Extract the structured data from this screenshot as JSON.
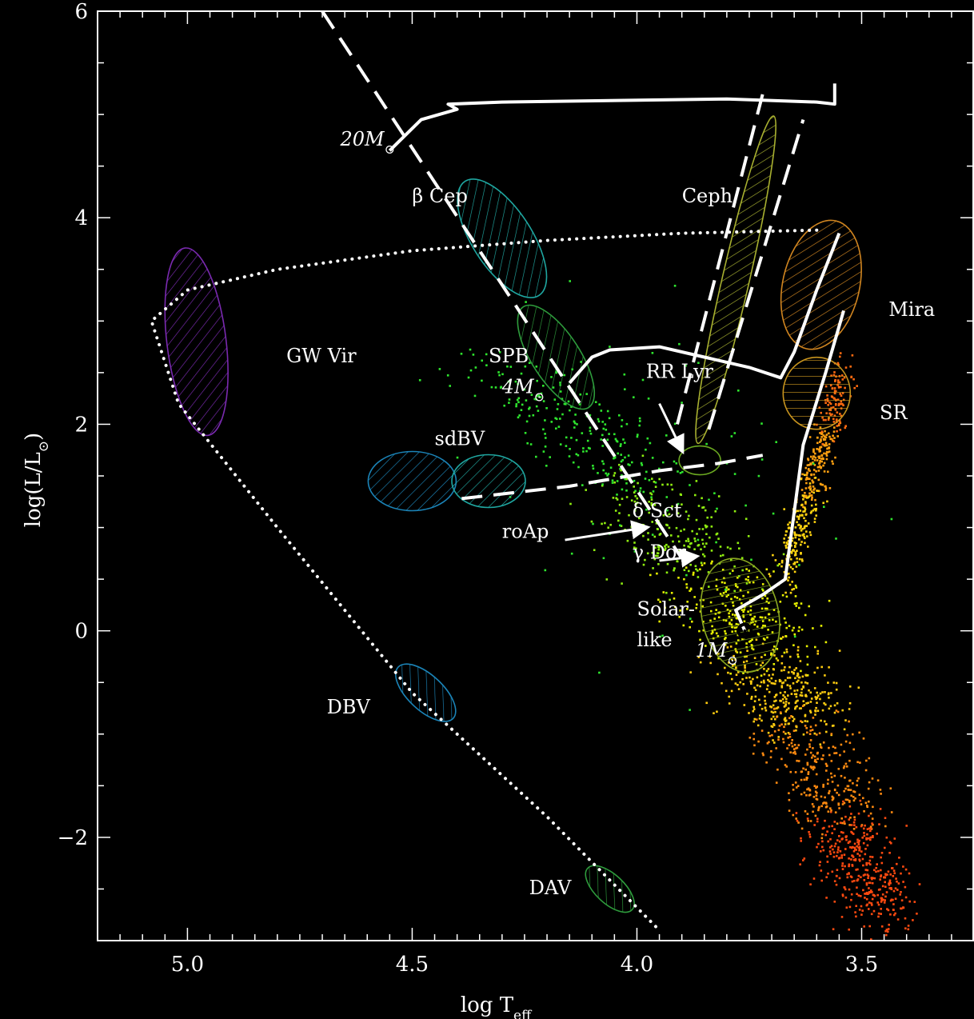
{
  "chart_data": {
    "type": "scatter",
    "title": "",
    "xlabel": "log T",
    "xlabel_sub": "eff",
    "ylabel": "log(L/L",
    "ylabel_sun": "⊙",
    "ylabel_close": ")",
    "xlim": [
      5.2,
      3.25
    ],
    "ylim": [
      -3.0,
      6.0
    ],
    "x_inverted": true,
    "grid": false,
    "background": "#000000",
    "x_ticks": [
      {
        "value": 5.0,
        "label": "5.0"
      },
      {
        "value": 4.5,
        "label": "4.5"
      },
      {
        "value": 4.0,
        "label": "4.0"
      },
      {
        "value": 3.5,
        "label": "3.5"
      }
    ],
    "y_ticks": [
      {
        "value": 6,
        "label": "6"
      },
      {
        "value": 4,
        "label": "4"
      },
      {
        "value": 2,
        "label": "2"
      },
      {
        "value": 0,
        "label": "0"
      },
      {
        "value": -2,
        "label": "−2"
      }
    ],
    "regions": [
      {
        "name": "GW Vir",
        "color": "#7a2ab0",
        "center": [
          4.98,
          2.8
        ],
        "hatch": "right"
      },
      {
        "name": "β Cep",
        "color": "#1fa6a0",
        "center": [
          4.3,
          3.8
        ],
        "hatch": "right"
      },
      {
        "name": "SPB",
        "color": "#2e9c3c",
        "center": [
          4.18,
          2.65
        ],
        "hatch": "right"
      },
      {
        "name": "sdBV",
        "color": "#1b84b8",
        "center": [
          4.5,
          1.45
        ],
        "hatch": "right"
      },
      {
        "name": "sdBV (cool)",
        "color": "#1fa6a0",
        "center": [
          4.33,
          1.45
        ],
        "hatch": "right"
      },
      {
        "name": "Ceph",
        "color": "#a8b030",
        "center": [
          3.78,
          3.4
        ],
        "hatch": "right"
      },
      {
        "name": "Mira",
        "color": "#d08520",
        "center": [
          3.59,
          3.35
        ],
        "hatch": "right"
      },
      {
        "name": "SR",
        "color": "#c8941e",
        "center": [
          3.6,
          2.3
        ],
        "hatch": "horizontal"
      },
      {
        "name": "RR Lyr",
        "color": "#6aa820",
        "center": [
          3.86,
          1.65
        ],
        "hatch": "none"
      },
      {
        "name": "Solar-like",
        "color": "#8aa820",
        "center": [
          3.77,
          0.15
        ],
        "hatch": "horizontal"
      },
      {
        "name": "DBV",
        "color": "#1b84b8",
        "center": [
          4.47,
          -0.6
        ],
        "hatch": "right"
      },
      {
        "name": "DAV",
        "color": "#2e9c3c",
        "center": [
          4.06,
          -2.5
        ],
        "hatch": "right"
      }
    ],
    "annotations": [
      {
        "text": "20M",
        "value": [
          4.66,
          4.7
        ],
        "italic": true,
        "sun": true
      },
      {
        "text": "β Cep",
        "value": [
          4.5,
          4.15
        ],
        "italic": false
      },
      {
        "text": "Ceph",
        "value": [
          3.9,
          4.15
        ],
        "italic": false
      },
      {
        "text": "Mira",
        "value": [
          3.44,
          3.05
        ],
        "italic": false
      },
      {
        "text": "GW Vir",
        "value": [
          4.78,
          2.6
        ],
        "italic": false
      },
      {
        "text": "SPB",
        "value": [
          4.33,
          2.6
        ],
        "italic": false
      },
      {
        "text": "4M",
        "value": [
          4.3,
          2.3
        ],
        "italic": true,
        "sun": true
      },
      {
        "text": "RR Lyr",
        "value": [
          3.98,
          2.45
        ],
        "italic": false
      },
      {
        "text": "SR",
        "value": [
          3.46,
          2.05
        ],
        "italic": false
      },
      {
        "text": "sdBV",
        "value": [
          4.45,
          1.8
        ],
        "italic": false
      },
      {
        "text": "δ Sct",
        "value": [
          4.01,
          1.1
        ],
        "italic": false
      },
      {
        "text": "roAp",
        "value": [
          4.3,
          0.9
        ],
        "italic": false
      },
      {
        "text": "γ Dor",
        "value": [
          4.01,
          0.7
        ],
        "italic": false
      },
      {
        "text": "Solar-",
        "value": [
          4.0,
          0.15
        ],
        "italic": false
      },
      {
        "text": "like",
        "value": [
          4.0,
          -0.15
        ],
        "italic": false
      },
      {
        "text": "1M",
        "value": [
          3.87,
          -0.25
        ],
        "italic": true,
        "sun": true
      },
      {
        "text": "DBV",
        "value": [
          4.69,
          -0.8
        ],
        "italic": false
      },
      {
        "text": "DAV",
        "value": [
          4.24,
          -2.55
        ],
        "italic": false
      }
    ],
    "series": [
      {
        "style": "dashed",
        "color": "#ffffff",
        "points": [
          [
            4.7,
            6.0
          ],
          [
            3.9,
            0.7
          ]
        ]
      },
      {
        "style": "dotted",
        "color": "#ffffff",
        "points": [
          [
            3.6,
            3.88
          ],
          [
            3.9,
            3.85
          ],
          [
            4.2,
            3.78
          ],
          [
            4.5,
            3.68
          ],
          [
            4.8,
            3.5
          ],
          [
            5.0,
            3.3
          ],
          [
            5.08,
            3.0
          ],
          [
            5.02,
            2.2
          ],
          [
            4.8,
            1.0
          ],
          [
            4.5,
            -0.6
          ],
          [
            4.2,
            -1.8
          ],
          [
            3.95,
            -2.9
          ]
        ]
      },
      {
        "style": "solid",
        "color": "#ffffff",
        "points": [
          [
            4.55,
            4.65
          ],
          [
            4.48,
            4.95
          ],
          [
            4.4,
            5.05
          ],
          [
            4.42,
            5.1
          ],
          [
            4.3,
            5.12
          ],
          [
            3.8,
            5.15
          ],
          [
            3.6,
            5.12
          ],
          [
            3.56,
            5.1
          ],
          [
            3.56,
            5.3
          ]
        ]
      },
      {
        "style": "solid",
        "color": "#ffffff",
        "points": [
          [
            4.15,
            2.4
          ],
          [
            4.1,
            2.65
          ],
          [
            4.06,
            2.72
          ],
          [
            3.95,
            2.75
          ],
          [
            3.85,
            2.65
          ],
          [
            3.75,
            2.55
          ],
          [
            3.68,
            2.45
          ],
          [
            3.65,
            2.7
          ],
          [
            3.6,
            3.3
          ],
          [
            3.55,
            3.85
          ]
        ]
      },
      {
        "style": "solid",
        "color": "#ffffff",
        "points": [
          [
            3.76,
            0.0
          ],
          [
            3.78,
            0.2
          ],
          [
            3.72,
            0.35
          ],
          [
            3.67,
            0.5
          ],
          [
            3.63,
            1.8
          ],
          [
            3.58,
            2.5
          ],
          [
            3.54,
            3.1
          ]
        ]
      },
      {
        "style": "dashed",
        "color": "#ffffff",
        "points": [
          [
            4.39,
            1.28
          ],
          [
            4.15,
            1.4
          ],
          [
            3.95,
            1.55
          ],
          [
            3.82,
            1.62
          ],
          [
            3.72,
            1.7
          ]
        ]
      },
      {
        "style": "dashed",
        "color": "#ffffff",
        "points": [
          [
            3.91,
            2.0
          ],
          [
            3.72,
            5.2
          ]
        ]
      },
      {
        "style": "dashed",
        "color": "#ffffff",
        "points": [
          [
            3.84,
            1.95
          ],
          [
            3.63,
            4.95
          ]
        ]
      }
    ],
    "main_sequence_colors": [
      "#2ee62e",
      "#8fee10",
      "#e8f200",
      "#ffcc10",
      "#ff8a10",
      "#ff4a10"
    ]
  }
}
